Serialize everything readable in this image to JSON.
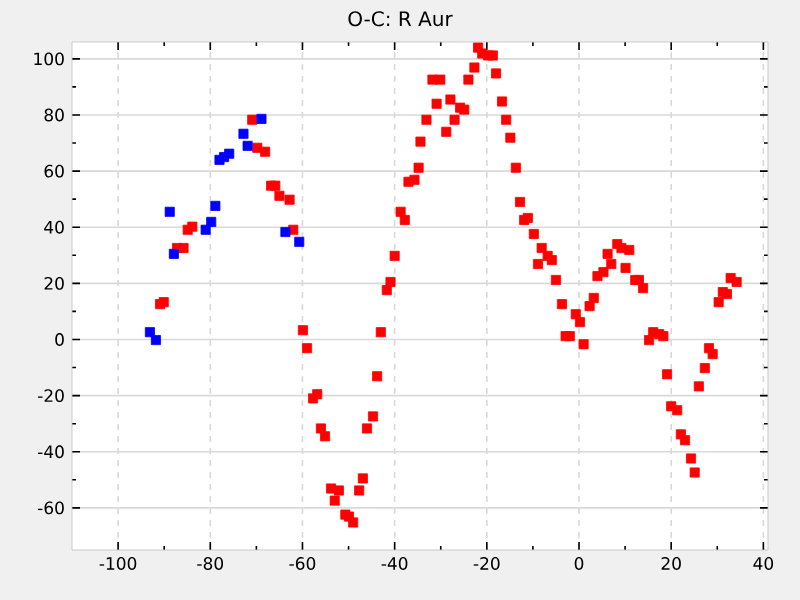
{
  "chart_data": {
    "type": "scatter",
    "title": "O-C: R Aur",
    "marker": "square",
    "grid": true,
    "xlim": [
      -110,
      41
    ],
    "ylim": [
      -75,
      106
    ],
    "xticks": [
      -100,
      -80,
      -60,
      -40,
      -20,
      0,
      20,
      40
    ],
    "yticks": [
      -60,
      -40,
      -20,
      0,
      20,
      40,
      60,
      80,
      100
    ],
    "series": [
      {
        "color": "#ff0000",
        "x": [
          -90.9,
          -90.1,
          -87.2,
          -85.8,
          -84.9,
          -83.9,
          -70.9,
          -69.8,
          -68.1,
          -66.8,
          -65.9,
          -65.0,
          -62.8,
          -62.0,
          -59.9,
          -59.0,
          -57.7,
          -56.8,
          -56.0,
          -55.1,
          -53.8,
          -52.1,
          -53.0,
          -50.7,
          -49.9,
          -49.0,
          -47.7,
          -46.9,
          -46.0,
          -44.7,
          -43.8,
          -43.0,
          -41.7,
          -40.9,
          -40.0,
          -38.7,
          -37.8,
          -37.0,
          -35.7,
          -34.8,
          -34.4,
          -33.1,
          -31.8,
          -30.1,
          -30.9,
          -28.8,
          -27.9,
          -27.0,
          -25.8,
          -24.9,
          -24.0,
          -22.7,
          -21.9,
          -21.0,
          -19.7,
          -18.7,
          -18.0,
          -16.7,
          -15.8,
          -14.9,
          -13.7,
          -12.8,
          -11.9,
          -11.1,
          -9.8,
          -8.1,
          -8.9,
          -6.8,
          -5.9,
          -5.0,
          -3.7,
          -2.9,
          -2.0,
          -0.7,
          0.2,
          1.0,
          2.3,
          3.2,
          4.0,
          5.3,
          6.2,
          7.0,
          8.3,
          9.2,
          10.9,
          10.1,
          12.2,
          13.0,
          13.9,
          15.2,
          16.1,
          17.4,
          18.3,
          19.1,
          20.0,
          21.3,
          22.1,
          23.0,
          24.3,
          25.1,
          26.0,
          27.3,
          28.2,
          29.0,
          30.3,
          31.2,
          32.1,
          32.9,
          34.2
        ],
        "values": [
          12.6,
          13.3,
          32.6,
          32.6,
          39.1,
          40.2,
          78.3,
          68.3,
          66.9,
          54.8,
          54.8,
          51.2,
          49.8,
          39.1,
          3.3,
          -3.1,
          -21.0,
          -19.5,
          -31.7,
          -34.5,
          -53.1,
          -53.8,
          -57.4,
          -62.4,
          -63.1,
          -65.2,
          -53.8,
          -49.5,
          -31.7,
          -27.4,
          -13.1,
          2.6,
          17.6,
          20.5,
          29.8,
          45.5,
          42.6,
          56.2,
          56.9,
          61.2,
          70.5,
          78.3,
          92.6,
          92.6,
          84.0,
          74.0,
          85.5,
          78.3,
          82.6,
          81.9,
          92.6,
          96.9,
          104.0,
          101.9,
          101.2,
          101.2,
          94.8,
          84.8,
          78.3,
          71.9,
          61.2,
          49.0,
          42.6,
          43.3,
          37.6,
          32.6,
          26.9,
          29.8,
          28.3,
          21.2,
          12.6,
          1.2,
          1.2,
          9.0,
          6.2,
          -1.7,
          11.9,
          14.8,
          22.6,
          24.0,
          30.5,
          26.9,
          34.0,
          32.6,
          31.9,
          25.5,
          21.2,
          21.2,
          18.3,
          -0.2,
          2.6,
          1.9,
          1.2,
          -12.4,
          -23.8,
          -25.2,
          -33.8,
          -35.9,
          -42.4,
          -47.4,
          -16.7,
          -10.2,
          -3.1,
          -5.2,
          13.3,
          16.9,
          16.2,
          21.9,
          20.5
        ]
      },
      {
        "color": "#0000ff",
        "x": [
          -93.1,
          -91.8,
          -88.8,
          -87.9,
          -81.0,
          -79.8,
          -78.9,
          -78.0,
          -77.0,
          -75.9,
          -72.8,
          -71.9,
          -68.9,
          -63.7,
          -60.7
        ],
        "values": [
          2.6,
          -0.2,
          45.5,
          30.5,
          39.1,
          41.9,
          47.6,
          64.0,
          65.0,
          66.2,
          73.3,
          69.0,
          78.6,
          38.3,
          34.8
        ]
      }
    ]
  }
}
